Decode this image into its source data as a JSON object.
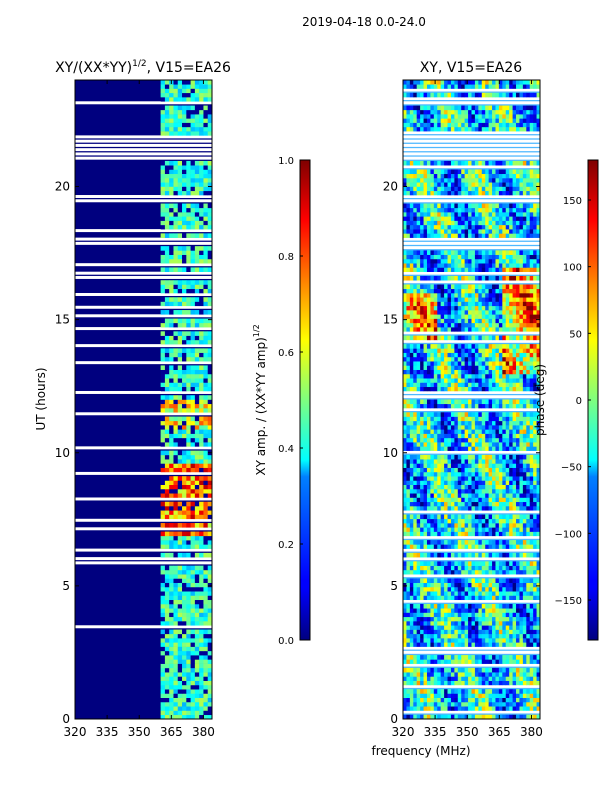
{
  "suptitle": "2019-04-18 0.0-24.0",
  "xlabel_shared": "frequency (MHz)",
  "chart_data": [
    {
      "type": "heatmap",
      "title_main": "XY/(XX*YY)",
      "title_sup": "1/2",
      "title_rest": ", V15=EA26",
      "xlabel": "frequency (MHz)",
      "ylabel": "UT (hours)",
      "xlim": [
        320,
        384
      ],
      "ylim": [
        0,
        24
      ],
      "xticks": [
        320,
        335,
        350,
        365,
        380
      ],
      "yticks": [
        0,
        5,
        10,
        15,
        20
      ],
      "colorbar": {
        "label_main": "XY amp. / (XX*YY amp)",
        "label_sup": "1/2",
        "range": [
          0.0,
          1.0
        ],
        "ticks": [
          "0.0",
          "0.2",
          "0.4",
          "0.6",
          "0.8",
          "1.0"
        ],
        "colormap": "jet"
      },
      "gaps_hours": [
        [
          21.9,
          20.9
        ],
        [
          19.6,
          19.4
        ],
        [
          18.0,
          17.8
        ],
        [
          16.8,
          16.6
        ],
        [
          12.3,
          12.1
        ],
        [
          6.4,
          6.2
        ],
        [
          6.0,
          5.9
        ],
        [
          23.2,
          23.0
        ]
      ],
      "feature_note": "Strong response concentrated at 361-381 MHz, peaking near 7-9.5 h"
    },
    {
      "type": "heatmap",
      "title_main": "XY, V15=EA26",
      "xlabel": "frequency (MHz)",
      "ylabel": "",
      "xlim": [
        320,
        384
      ],
      "ylim": [
        0,
        24
      ],
      "xticks": [
        320,
        335,
        350,
        365,
        380
      ],
      "yticks": [
        0,
        5,
        10,
        15,
        20
      ],
      "colorbar": {
        "label_main": "phase (deg)",
        "range": [
          -180,
          180
        ],
        "ticks": [
          "−150",
          "−100",
          "−50",
          "0",
          "50",
          "100",
          "150"
        ],
        "colormap": "jet"
      },
      "gaps_hours": [
        [
          21.9,
          20.9
        ],
        [
          19.6,
          19.4
        ],
        [
          18.0,
          17.8
        ],
        [
          16.8,
          16.6
        ],
        [
          12.3,
          12.1
        ],
        [
          6.4,
          6.2
        ],
        [
          6.0,
          5.9
        ],
        [
          23.2,
          23.0
        ]
      ]
    }
  ],
  "colors": {
    "jet_low": "#00007f",
    "jet_high": "#7f0000",
    "axes": "#000000",
    "background": "#ffffff"
  }
}
